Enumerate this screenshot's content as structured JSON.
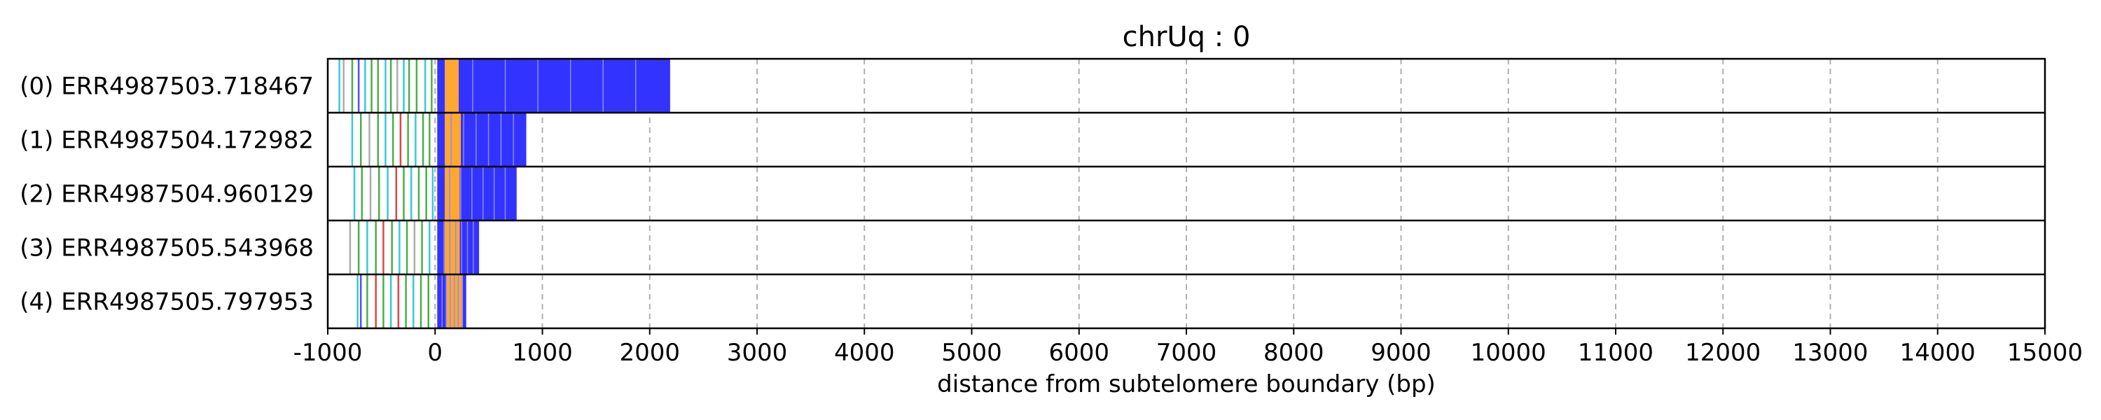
{
  "chart_data": {
    "type": "read-track",
    "title": "chrUq : 0",
    "xlabel": "distance from subtelomere boundary (bp)",
    "ylabel": "",
    "xlim": [
      -1000,
      15000
    ],
    "xticks": [
      -1000,
      0,
      1000,
      2000,
      3000,
      4000,
      5000,
      6000,
      7000,
      8000,
      9000,
      10000,
      11000,
      12000,
      13000,
      14000,
      15000
    ],
    "xtick_labels": [
      "-1000",
      "0",
      "1000",
      "2000",
      "3000",
      "4000",
      "5000",
      "6000",
      "7000",
      "8000",
      "9000",
      "10000",
      "11000",
      "12000",
      "13000",
      "14000",
      "15000"
    ],
    "grid": "vertical dashed",
    "colors": {
      "blue": "#3333ff",
      "orange": "#ffa733",
      "green": "#2ca02c",
      "teal": "#17becf",
      "red": "#d62728",
      "gray": "#9e9e9e"
    },
    "reads": [
      {
        "label": "(0) ERR4987503.718467",
        "start": -950,
        "end": 2190,
        "blue": [
          [
            20,
            2190
          ]
        ],
        "orange": [
          [
            90,
            220
          ]
        ],
        "lines": [
          {
            "x": -900,
            "color": "teal"
          },
          {
            "x": -860,
            "color": "gray"
          },
          {
            "x": -780,
            "color": "green"
          },
          {
            "x": -720,
            "color": "blue"
          },
          {
            "x": -660,
            "color": "teal"
          },
          {
            "x": -600,
            "color": "green"
          },
          {
            "x": -540,
            "color": "green"
          },
          {
            "x": -470,
            "color": "teal"
          },
          {
            "x": -420,
            "color": "green"
          },
          {
            "x": -360,
            "color": "gray"
          },
          {
            "x": -300,
            "color": "teal"
          },
          {
            "x": -250,
            "color": "green"
          },
          {
            "x": -180,
            "color": "green"
          },
          {
            "x": -100,
            "color": "teal"
          },
          {
            "x": -40,
            "color": "green"
          }
        ]
      },
      {
        "label": "(1) ERR4987504.172982",
        "start": -800,
        "end": 850,
        "blue": [
          [
            20,
            850
          ]
        ],
        "orange": [
          [
            90,
            240
          ]
        ],
        "lines": [
          {
            "x": -780,
            "color": "teal"
          },
          {
            "x": -700,
            "color": "green"
          },
          {
            "x": -620,
            "color": "gray"
          },
          {
            "x": -540,
            "color": "green"
          },
          {
            "x": -470,
            "color": "teal"
          },
          {
            "x": -400,
            "color": "green"
          },
          {
            "x": -330,
            "color": "red"
          },
          {
            "x": -260,
            "color": "green"
          },
          {
            "x": -190,
            "color": "teal"
          },
          {
            "x": -120,
            "color": "green"
          },
          {
            "x": -60,
            "color": "green"
          }
        ]
      },
      {
        "label": "(2) ERR4987504.960129",
        "start": -780,
        "end": 760,
        "blue": [
          [
            20,
            760
          ]
        ],
        "orange": [
          [
            90,
            230
          ]
        ],
        "lines": [
          {
            "x": -760,
            "color": "teal"
          },
          {
            "x": -690,
            "color": "green"
          },
          {
            "x": -610,
            "color": "gray"
          },
          {
            "x": -530,
            "color": "green"
          },
          {
            "x": -450,
            "color": "teal"
          },
          {
            "x": -370,
            "color": "red"
          },
          {
            "x": -300,
            "color": "green"
          },
          {
            "x": -230,
            "color": "teal"
          },
          {
            "x": -160,
            "color": "green"
          },
          {
            "x": -90,
            "color": "green"
          },
          {
            "x": -30,
            "color": "teal"
          }
        ]
      },
      {
        "label": "(3) ERR4987505.543968",
        "start": -820,
        "end": 410,
        "blue": [
          [
            20,
            410
          ]
        ],
        "orange": [
          [
            90,
            230
          ]
        ],
        "lines": [
          {
            "x": -800,
            "color": "gray"
          },
          {
            "x": -720,
            "color": "green"
          },
          {
            "x": -640,
            "color": "teal"
          },
          {
            "x": -560,
            "color": "green"
          },
          {
            "x": -490,
            "color": "red"
          },
          {
            "x": -410,
            "color": "green"
          },
          {
            "x": -340,
            "color": "teal"
          },
          {
            "x": -270,
            "color": "green"
          },
          {
            "x": -200,
            "color": "gray"
          },
          {
            "x": -130,
            "color": "green"
          },
          {
            "x": -60,
            "color": "teal"
          }
        ]
      },
      {
        "label": "(4) ERR4987505.797953",
        "start": -750,
        "end": 290,
        "blue": [
          [
            20,
            290
          ]
        ],
        "orange": [
          [
            100,
            260
          ]
        ],
        "lines": [
          {
            "x": -730,
            "color": "teal"
          },
          {
            "x": -700,
            "color": "blue"
          },
          {
            "x": -640,
            "color": "green"
          },
          {
            "x": -560,
            "color": "red"
          },
          {
            "x": -490,
            "color": "green"
          },
          {
            "x": -420,
            "color": "teal"
          },
          {
            "x": -350,
            "color": "red"
          },
          {
            "x": -280,
            "color": "green"
          },
          {
            "x": -210,
            "color": "teal"
          },
          {
            "x": -140,
            "color": "green"
          },
          {
            "x": -70,
            "color": "green"
          }
        ]
      }
    ]
  }
}
